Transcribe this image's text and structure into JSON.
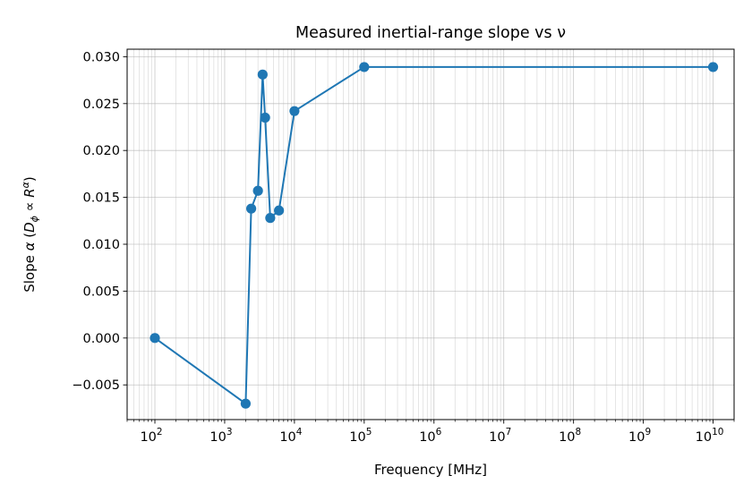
{
  "chart_data": {
    "type": "line",
    "title": "Measured inertial-range slope vs ν",
    "xlabel": "Frequency [MHz]",
    "ylabel": "Slope α (Dφ ∝ Rᵅ)",
    "ylabel_parts": {
      "prefix": "Slope ",
      "alpha": "α",
      "open": " (",
      "D": "D",
      "phi": "ϕ",
      "prop": " ∝ ",
      "R": "R",
      "exp": "α",
      "close": ")"
    },
    "x_scale": "log",
    "x": [
      100,
      2000,
      2400,
      3000,
      3500,
      3800,
      4500,
      6000,
      10000,
      100000,
      10000000000
    ],
    "y": [
      0.0,
      -0.007,
      0.0138,
      0.0157,
      0.0281,
      0.0235,
      0.0128,
      0.0136,
      0.0242,
      0.0289,
      0.0289
    ],
    "xlim": [
      40,
      20000000000
    ],
    "ylim": [
      -0.0087,
      0.0308
    ],
    "x_ticks": [
      {
        "base": "10",
        "exp": "2",
        "value": 100
      },
      {
        "base": "10",
        "exp": "3",
        "value": 1000
      },
      {
        "base": "10",
        "exp": "4",
        "value": 10000
      },
      {
        "base": "10",
        "exp": "5",
        "value": 100000
      },
      {
        "base": "10",
        "exp": "6",
        "value": 1000000
      },
      {
        "base": "10",
        "exp": "7",
        "value": 10000000
      },
      {
        "base": "10",
        "exp": "8",
        "value": 100000000
      },
      {
        "base": "10",
        "exp": "9",
        "value": 1000000000
      },
      {
        "base": "10",
        "exp": "10",
        "value": 10000000000
      }
    ],
    "y_ticks": [
      {
        "label": "−0.005",
        "value": -0.005
      },
      {
        "label": "0.000",
        "value": 0.0
      },
      {
        "label": "0.005",
        "value": 0.005
      },
      {
        "label": "0.010",
        "value": 0.01
      },
      {
        "label": "0.015",
        "value": 0.015
      },
      {
        "label": "0.020",
        "value": 0.02
      },
      {
        "label": "0.025",
        "value": 0.025
      },
      {
        "label": "0.030",
        "value": 0.03
      }
    ],
    "grid": true,
    "grid_minor": true,
    "series_color": "#1f77b4",
    "marker": "circle"
  }
}
